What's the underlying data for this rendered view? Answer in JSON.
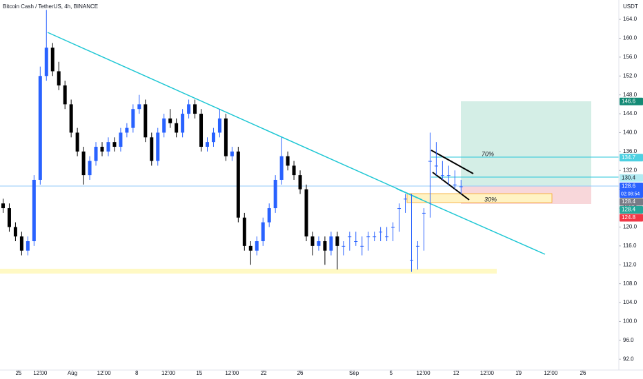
{
  "chart_data": {
    "type": "candlestick",
    "title": "Bitcoin Cash / TetherUS, 4h, BINANCE",
    "y_unit": "USDT",
    "up_color": "#2962ff",
    "down_color": "#000000",
    "xlim": [
      0,
      100
    ],
    "ylim": [
      89.7,
      168.1
    ],
    "xticks": [
      {
        "value": 3.0,
        "label": "25"
      },
      {
        "value": 6.5,
        "label": "12:00"
      },
      {
        "value": 11.7,
        "label": "Aug"
      },
      {
        "value": 16.8,
        "label": "12:00"
      },
      {
        "value": 22.1,
        "label": "8"
      },
      {
        "value": 27.2,
        "label": "12:00"
      },
      {
        "value": 32.2,
        "label": "15"
      },
      {
        "value": 37.5,
        "label": "12:00"
      },
      {
        "value": 42.6,
        "label": "22"
      },
      {
        "value": 48.5,
        "label": "26"
      },
      {
        "value": 57.2,
        "label": "Sep"
      },
      {
        "value": 63.2,
        "label": "5"
      },
      {
        "value": 68.4,
        "label": "12:00"
      },
      {
        "value": 73.7,
        "label": "12"
      },
      {
        "value": 78.7,
        "label": "12:00"
      },
      {
        "value": 83.8,
        "label": "19"
      },
      {
        "value": 89.0,
        "label": "12:00"
      },
      {
        "value": 94.2,
        "label": "26"
      }
    ],
    "yticks": [
      {
        "value": 92,
        "label": "92.0"
      },
      {
        "value": 96,
        "label": "96.0"
      },
      {
        "value": 100,
        "label": "100.0"
      },
      {
        "value": 104,
        "label": "104.0"
      },
      {
        "value": 108,
        "label": "108.0"
      },
      {
        "value": 112,
        "label": "112.0"
      },
      {
        "value": 116,
        "label": "116.0"
      },
      {
        "value": 120,
        "label": "120.0"
      },
      {
        "value": 124,
        "label": "124.0"
      },
      {
        "value": 128,
        "label": "128.0"
      },
      {
        "value": 132,
        "label": "132.0"
      },
      {
        "value": 136,
        "label": "136.0"
      },
      {
        "value": 140,
        "label": "140.0"
      },
      {
        "value": 144,
        "label": "144.0"
      },
      {
        "value": 148,
        "label": "148.0"
      },
      {
        "value": 152,
        "label": "152.0"
      },
      {
        "value": 156,
        "label": "156.0"
      },
      {
        "value": 160,
        "label": "160.0"
      },
      {
        "value": 164,
        "label": "164.0"
      }
    ],
    "x": [
      0.5,
      1.5,
      2.5,
      3.5,
      4.5,
      5.5,
      6.5,
      7.5,
      8.5,
      9.5,
      10.5,
      11.5,
      12.5,
      13.5,
      14.5,
      15.5,
      16.5,
      17.5,
      18.5,
      19.5,
      20.5,
      21.5,
      22.5,
      23.5,
      24.5,
      25.5,
      26.5,
      27.5,
      28.5,
      29.5,
      30.5,
      31.5,
      32.5,
      33.5,
      34.5,
      35.5,
      36.5,
      37.5,
      38.5,
      39.5,
      40.5,
      41.5,
      42.5,
      43.5,
      44.5,
      45.5,
      46.5,
      47.5,
      48.5,
      49.5,
      50.5,
      51.5,
      52.5,
      53.5,
      54.5,
      55.5,
      56.5,
      57.5,
      58.5,
      59.5,
      60.5,
      61.5,
      62.5,
      63.5,
      64.5,
      65.5,
      66.5,
      67.5,
      68.5,
      69.5,
      70.5,
      71.5,
      72.5,
      73.5,
      74.5
    ],
    "open": [
      125,
      124,
      120,
      118,
      115,
      117,
      130,
      152,
      158,
      153,
      150,
      146,
      140,
      136,
      131,
      134,
      137,
      136,
      138,
      137,
      140,
      141,
      145,
      146,
      139,
      134,
      140,
      143,
      142,
      140,
      144,
      146,
      144,
      137,
      138,
      140,
      143,
      135,
      136,
      122,
      116,
      115,
      117,
      121,
      124,
      130,
      135,
      133,
      131,
      128,
      118,
      116,
      117,
      115,
      118,
      116,
      118,
      117,
      116,
      118,
      118,
      119,
      118,
      120,
      124,
      126,
      113,
      116,
      123,
      134,
      133,
      131,
      131,
      129,
      128.6
    ],
    "high": [
      126,
      125,
      121,
      119,
      118,
      131,
      154,
      166,
      159,
      155,
      151,
      147,
      141,
      137,
      135,
      138,
      138,
      139,
      139,
      141,
      142,
      146,
      148,
      147,
      140,
      141,
      144,
      145,
      143,
      145,
      147,
      147,
      145,
      139,
      141,
      145,
      144,
      137,
      137,
      123,
      117,
      118,
      122,
      125,
      131,
      139,
      136,
      134,
      132,
      129,
      119,
      118,
      118,
      119,
      119,
      117,
      119,
      119,
      118,
      119,
      119,
      120,
      120,
      121,
      125,
      127,
      127,
      117,
      124,
      140,
      138,
      134,
      133,
      132,
      130
    ],
    "low": [
      123,
      119,
      117,
      114,
      114,
      116,
      129,
      151,
      152,
      149,
      145,
      139,
      135,
      129,
      130,
      133,
      135,
      135,
      136,
      136,
      139,
      140,
      144,
      138,
      133,
      133,
      139,
      141,
      139,
      139,
      143,
      143,
      136,
      136,
      137,
      139,
      134,
      134,
      121,
      115,
      112,
      114,
      116,
      120,
      123,
      129,
      132,
      130,
      127,
      117,
      114,
      115,
      112,
      114,
      111,
      114,
      115,
      116,
      114,
      115,
      117,
      117,
      117,
      117,
      119,
      123,
      110.5,
      111,
      115,
      122,
      131,
      130,
      129,
      128,
      127
    ],
    "close": [
      124,
      120,
      118,
      115,
      117,
      130,
      152,
      158,
      153,
      150,
      146,
      140,
      136,
      131,
      134,
      137,
      136,
      138,
      137,
      140,
      141,
      145,
      146,
      139,
      134,
      140,
      143,
      142,
      140,
      144,
      146,
      144,
      137,
      138,
      140,
      143,
      135,
      136,
      122,
      116,
      115,
      117,
      121,
      124,
      130,
      135,
      133,
      131,
      128,
      118,
      116,
      117,
      115,
      118,
      116,
      116,
      118,
      117,
      116,
      118,
      118,
      119,
      118,
      120,
      124,
      126,
      113,
      116,
      123,
      134,
      133,
      131,
      131,
      129,
      128.6
    ],
    "annotations": [
      {
        "text": "70%"
      },
      {
        "text": "30%"
      }
    ],
    "price_labels": [
      {
        "value": 146.6,
        "label": "146.6",
        "color": "#138a75"
      },
      {
        "value": 134.7,
        "label": "134.7",
        "color": "#4dd0e1"
      },
      {
        "value": 130.4,
        "label": "130.4",
        "color": "#b2ebf2"
      },
      {
        "value": 128.6,
        "label": "128.6",
        "color": "#2962ff",
        "countdown": "02:08:54"
      },
      {
        "value": 128.4,
        "label": "128.4",
        "color": "#787b86"
      },
      {
        "value": 128.4,
        "label": "128.4",
        "color": "#26a69a"
      },
      {
        "value": 124.8,
        "label": "124.8",
        "color": "#f23645"
      }
    ]
  }
}
